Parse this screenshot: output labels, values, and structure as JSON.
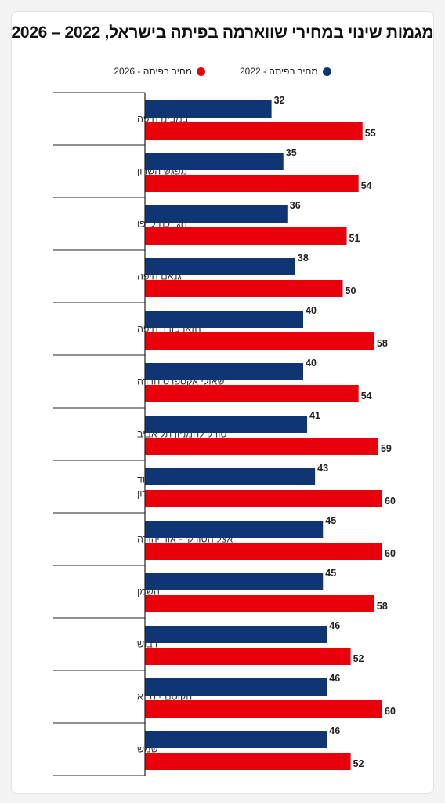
{
  "chart_data": {
    "type": "bar",
    "orientation": "horizontal",
    "title": "מגמות שינוי במחירי שווארמה בפיתה בישראל, 2022 – 2026",
    "xlabel": "",
    "ylabel": "",
    "xlim": [
      0,
      66
    ],
    "grid": false,
    "legend_placement": "top-center",
    "categories": [
      [
        "במבינו חיפה"
      ],
      [
        "מפגש השרון"
      ],
      [
        "חג׳ כחיל יפו"
      ],
      [
        "גנאם חיפה"
      ],
      [
        "חזאן פורד חיפה"
      ],
      [
        "שאולי אקספרס חדרה"
      ],
      [
        "טורק לחמניון תל אביב"
      ],
      [
        "הטאבון בון הוד",
        "השרון"
      ],
      [
        "אצל הטורקי - אור יהודה"
      ],
      [
        "השמן"
      ],
      [
        "דבוש"
      ],
      [
        "הקוסם - ת״א"
      ],
      [
        "שמש"
      ]
    ],
    "series": [
      {
        "name": "מחיר בפיתה - 2022",
        "color": "#0f3572",
        "values": [
          32,
          35,
          36,
          38,
          40,
          40,
          41,
          43,
          45,
          45,
          46,
          46,
          46
        ]
      },
      {
        "name": "מחיר בפיתה - 2026",
        "color": "#e8000b",
        "values": [
          55,
          54,
          51,
          50,
          58,
          54,
          59,
          60,
          60,
          58,
          52,
          60,
          52
        ]
      }
    ]
  }
}
